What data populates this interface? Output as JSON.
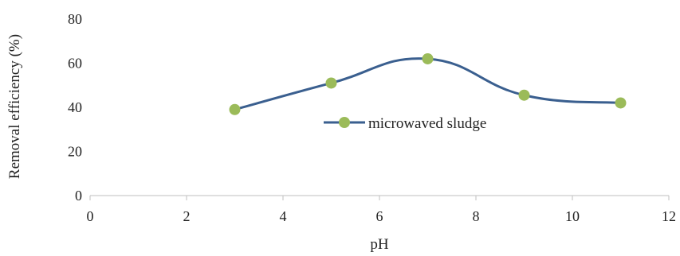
{
  "chart_data": {
    "type": "line",
    "title": "",
    "xlabel": "pH",
    "ylabel": "Removal efficiency (%)",
    "xlim": [
      0,
      12
    ],
    "ylim": [
      0,
      80
    ],
    "x_ticks": [
      0,
      2,
      4,
      6,
      8,
      10,
      12
    ],
    "y_ticks": [
      0,
      20,
      40,
      60,
      80
    ],
    "x_tick_labels": [
      "0",
      "2",
      "4",
      "6",
      "8",
      "10",
      "12"
    ],
    "y_tick_labels": [
      "0",
      "20",
      "40",
      "60",
      "80"
    ],
    "grid": false,
    "smooth": true,
    "legend_position": "center",
    "series": [
      {
        "name": "microwaved sludge",
        "x": [
          3,
          5,
          7,
          9,
          11
        ],
        "y": [
          39,
          51,
          62,
          45.5,
          42
        ],
        "line_color": "#3a5f8f",
        "marker_color": "#9bbb59"
      }
    ]
  }
}
